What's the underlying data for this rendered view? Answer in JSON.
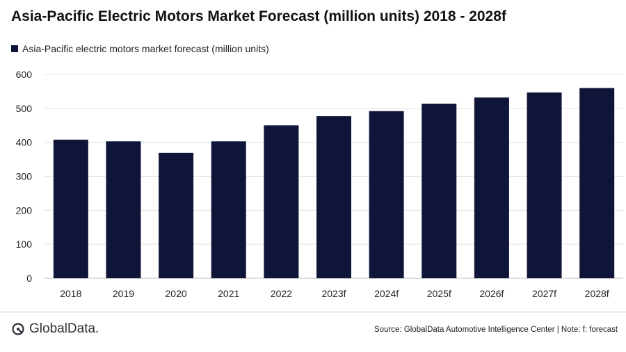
{
  "title": "Asia-Pacific Electric Motors Market Forecast (million units) 2018 - 2028f",
  "footer": {
    "logo_text": "GlobalData.",
    "source": "Source:  GlobalData Automotive  Intelligence Center | Note: f: forecast"
  },
  "colors": {
    "bar": "#0f1538",
    "grid": "#e3e3e3",
    "axis": "#bdbdbd"
  },
  "chart_data": {
    "type": "bar",
    "categories": [
      "2018",
      "2019",
      "2020",
      "2021",
      "2022",
      "2023f",
      "2024f",
      "2025f",
      "2026f",
      "2027f",
      "2028f"
    ],
    "series": [
      {
        "name": "Asia-Pacific electric motors market forecast (million units)",
        "values": [
          408,
          403,
          369,
          403,
          450,
          477,
          492,
          514,
          532,
          547,
          560
        ]
      }
    ],
    "yticks": [
      "0",
      "100",
      "200",
      "300",
      "400",
      "500",
      "600"
    ],
    "ylim": [
      0,
      600
    ],
    "grid": true,
    "legend_position": "top-left"
  }
}
